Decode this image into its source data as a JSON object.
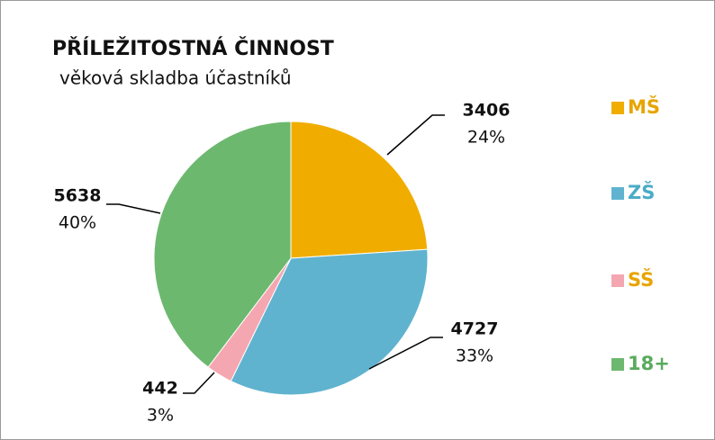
{
  "chart_data": {
    "type": "pie",
    "title": "PŘÍLEŽITOSTNÁ ČINNOST",
    "subtitle": "věková skladba účastníků",
    "categories": [
      "MŠ",
      "ZŠ",
      "SŠ",
      "18+"
    ],
    "values": [
      3406,
      4727,
      442,
      5638
    ],
    "percents": [
      24,
      33,
      3,
      40
    ],
    "percent_labels": [
      "24%",
      "33%",
      "3%",
      "40%"
    ],
    "colors": [
      "#f0ad00",
      "#5fb3cf",
      "#f4a7b0",
      "#6cb86f"
    ],
    "legend_text_colors": [
      "#e8a400",
      "#4bacc6",
      "#e8a400",
      "#5aaa5e"
    ],
    "legend": "right"
  }
}
